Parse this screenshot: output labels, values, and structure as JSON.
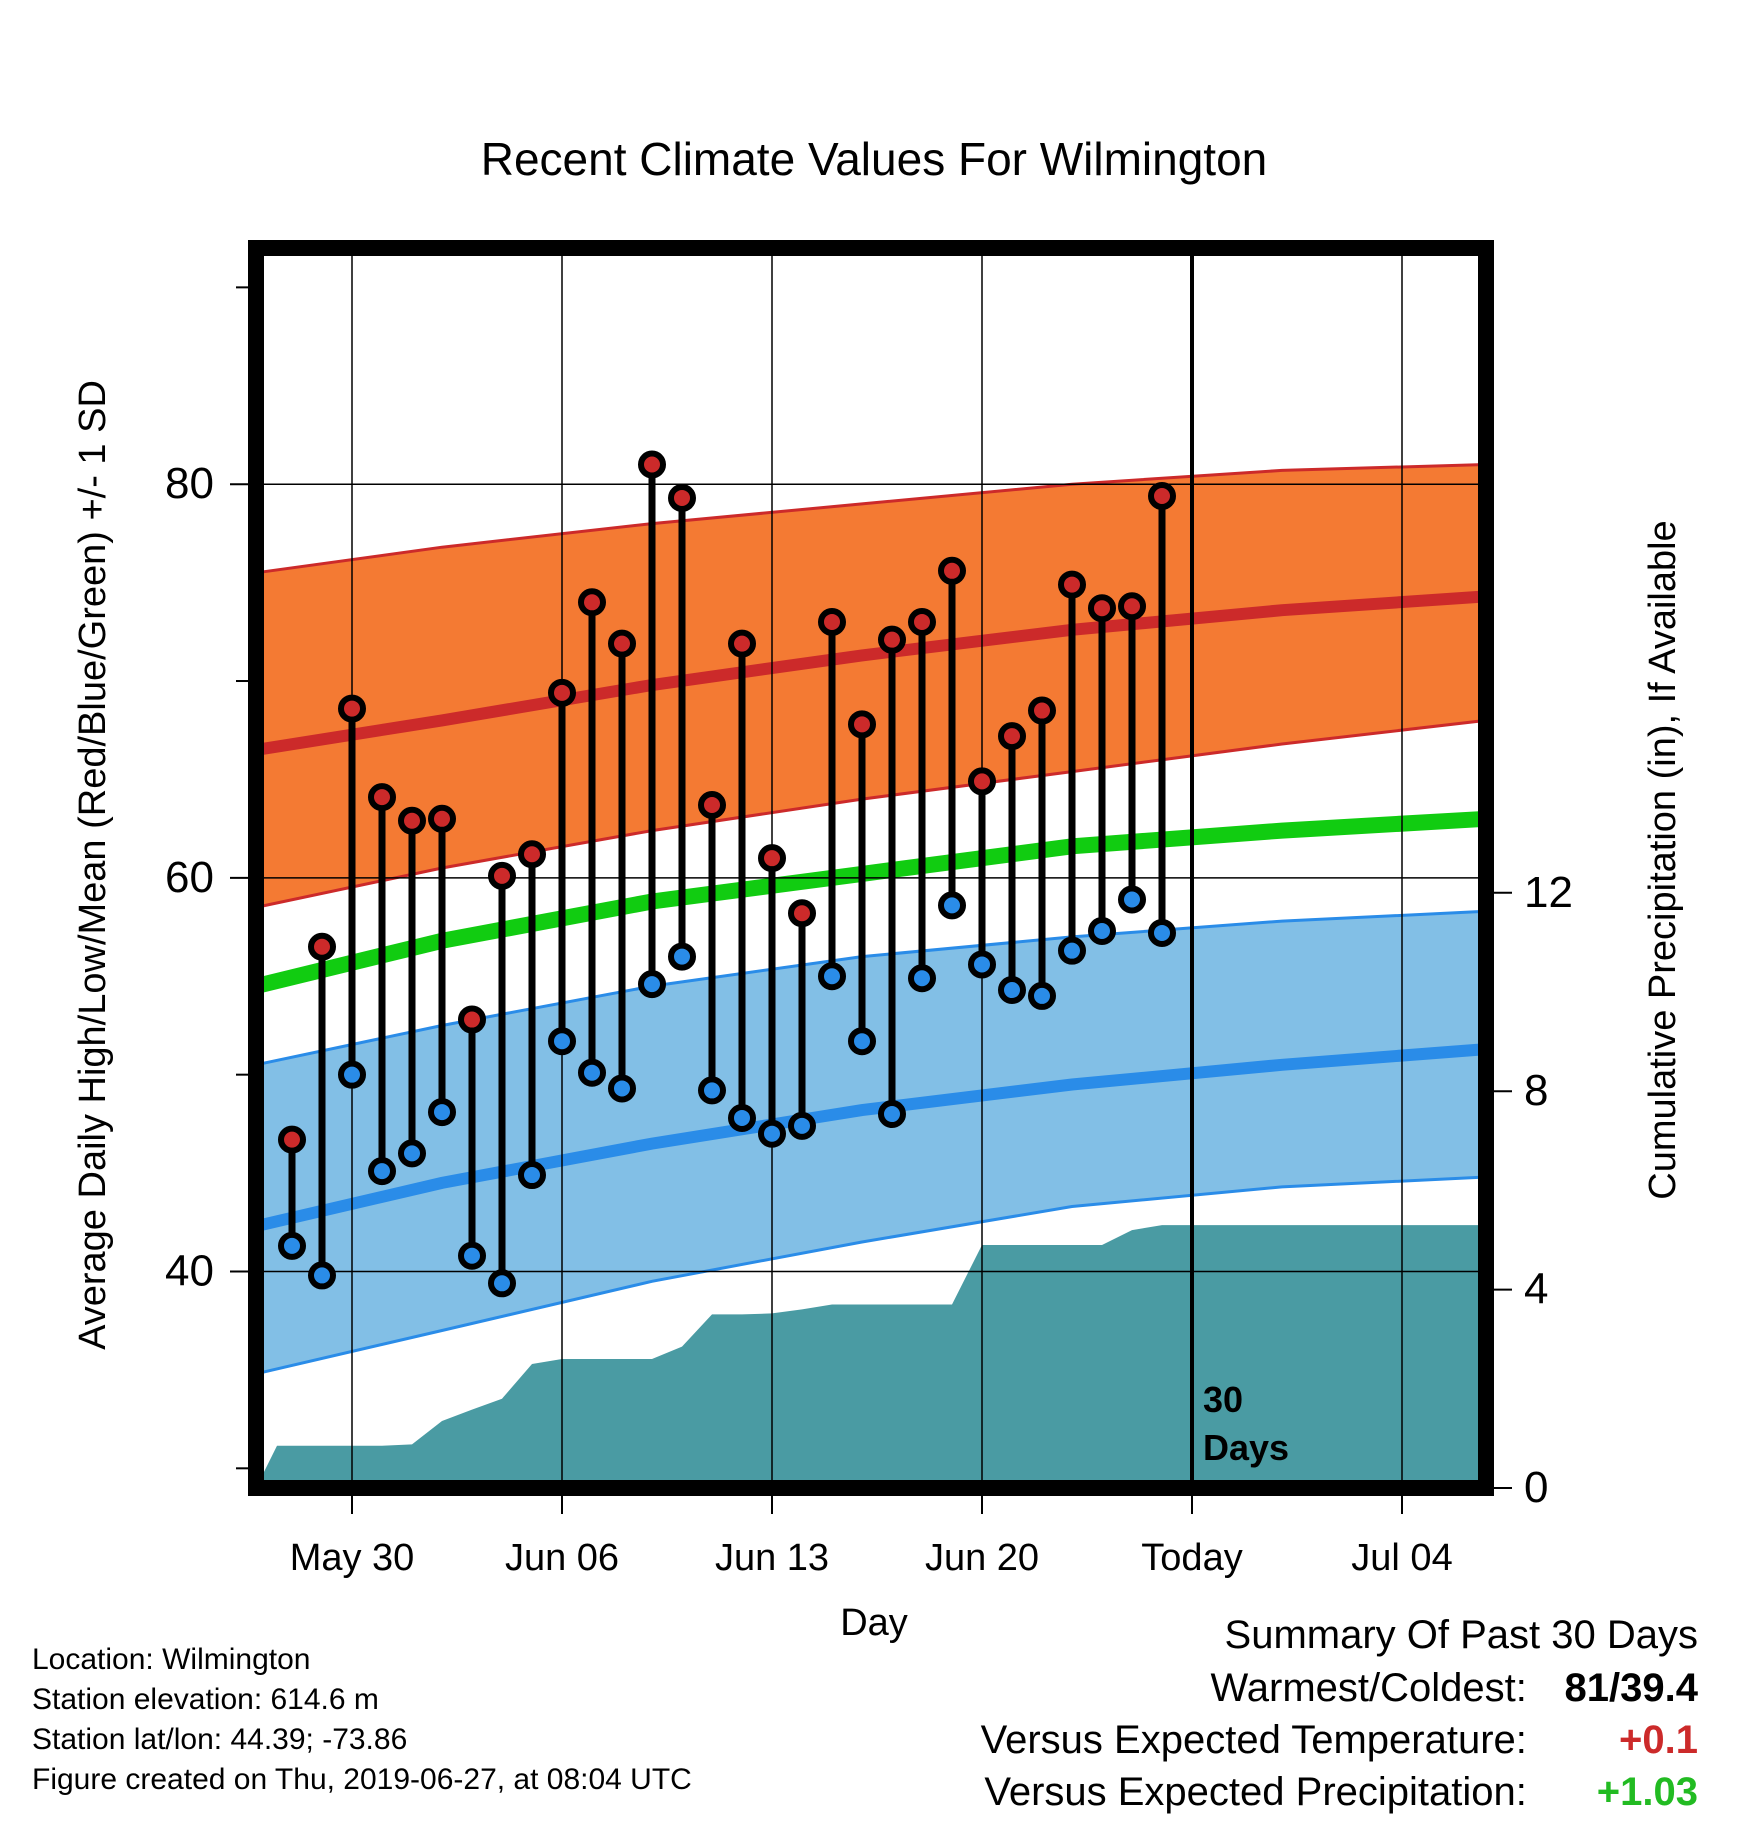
{
  "chart_data": {
    "type": "line",
    "title": "Recent Climate Values For Wilmington",
    "xlabel": "Day",
    "ylabel": "Average Daily High/Low/Mean (Red/Blue/Green) +/- 1 SD",
    "y2label": "Cumulative Precipitation (in), If Available",
    "x_tick_labels": [
      "May 30",
      "Jun 06",
      "Jun 13",
      "Jun 20",
      "Today",
      "Jul 04"
    ],
    "x_tick_dates": [
      "2019-05-30",
      "2019-06-06",
      "2019-06-13",
      "2019-06-20",
      "2019-06-27",
      "2019-07-04"
    ],
    "xlim": [
      "2019-05-26.8",
      "2019-07-06.8"
    ],
    "y_ticks": [
      "40",
      "60",
      "80"
    ],
    "ylim": [
      29,
      92
    ],
    "y2_ticks": [
      "0",
      "4",
      "8",
      "12"
    ],
    "y2lim": [
      0,
      25
    ],
    "today_marker": {
      "date": "2019-06-27",
      "label_line1": "30",
      "label_line2": "Days"
    },
    "normals": {
      "dates": [
        "2019-05-26.8",
        "2019-06-02",
        "2019-06-09",
        "2019-06-16",
        "2019-06-23",
        "2019-06-30",
        "2019-07-06.8"
      ],
      "high_mean": [
        66.5,
        68.0,
        69.8,
        71.3,
        72.6,
        73.6,
        74.3
      ],
      "high_plus_sd": [
        75.5,
        76.8,
        78.0,
        79.0,
        80.0,
        80.7,
        81.0
      ],
      "high_minus_sd": [
        58.5,
        60.5,
        62.4,
        64.0,
        65.4,
        66.8,
        68.0
      ],
      "mean": [
        54.5,
        56.8,
        58.8,
        60.2,
        61.6,
        62.4,
        63.0
      ],
      "low_mean": [
        42.3,
        44.5,
        46.5,
        48.2,
        49.5,
        50.5,
        51.3
      ],
      "low_plus_sd": [
        50.5,
        52.5,
        54.5,
        56.0,
        57.0,
        57.8,
        58.3
      ],
      "low_minus_sd": [
        34.8,
        37.0,
        39.5,
        41.5,
        43.3,
        44.3,
        44.8
      ]
    },
    "series": [
      {
        "name": "High",
        "color": "#cc2a2a",
        "dates": [
          "2019-05-28",
          "2019-05-29",
          "2019-05-30",
          "2019-05-31",
          "2019-06-01",
          "2019-06-02",
          "2019-06-03",
          "2019-06-04",
          "2019-06-05",
          "2019-06-06",
          "2019-06-07",
          "2019-06-08",
          "2019-06-09",
          "2019-06-10",
          "2019-06-11",
          "2019-06-12",
          "2019-06-13",
          "2019-06-14",
          "2019-06-15",
          "2019-06-16",
          "2019-06-17",
          "2019-06-18",
          "2019-06-19",
          "2019-06-20",
          "2019-06-21",
          "2019-06-22",
          "2019-06-23",
          "2019-06-24",
          "2019-06-25",
          "2019-06-26"
        ],
        "values": [
          46.7,
          56.5,
          68.6,
          64.1,
          62.9,
          63.0,
          52.8,
          60.1,
          61.2,
          69.4,
          74.0,
          71.9,
          81.0,
          79.3,
          63.7,
          71.9,
          61.0,
          58.2,
          73.0,
          67.8,
          72.1,
          73.0,
          75.6,
          64.9,
          67.2,
          68.5,
          74.9,
          73.7,
          73.8,
          79.4
        ]
      },
      {
        "name": "Low",
        "color": "#2a8ce8",
        "dates": [
          "2019-05-28",
          "2019-05-29",
          "2019-05-30",
          "2019-05-31",
          "2019-06-01",
          "2019-06-02",
          "2019-06-03",
          "2019-06-04",
          "2019-06-05",
          "2019-06-06",
          "2019-06-07",
          "2019-06-08",
          "2019-06-09",
          "2019-06-10",
          "2019-06-11",
          "2019-06-12",
          "2019-06-13",
          "2019-06-14",
          "2019-06-15",
          "2019-06-16",
          "2019-06-17",
          "2019-06-18",
          "2019-06-19",
          "2019-06-20",
          "2019-06-21",
          "2019-06-22",
          "2019-06-23",
          "2019-06-24",
          "2019-06-25",
          "2019-06-26"
        ],
        "values": [
          41.3,
          39.8,
          50.0,
          45.1,
          46.0,
          48.1,
          40.8,
          39.4,
          44.9,
          51.7,
          50.1,
          49.3,
          54.6,
          56.0,
          49.2,
          47.8,
          47.0,
          47.4,
          55.0,
          51.7,
          48.0,
          54.9,
          58.6,
          55.6,
          54.3,
          54.0,
          56.3,
          57.3,
          58.9,
          57.2
        ]
      },
      {
        "name": "Cumulative Precipitation",
        "color": "#4a9ba3",
        "dates": [
          "2019-05-26.8",
          "2019-05-27.5",
          "2019-05-28",
          "2019-05-29",
          "2019-05-30",
          "2019-05-31",
          "2019-06-01",
          "2019-06-02",
          "2019-06-03",
          "2019-06-04",
          "2019-06-05",
          "2019-06-06",
          "2019-06-07",
          "2019-06-08",
          "2019-06-09",
          "2019-06-10",
          "2019-06-11",
          "2019-06-12",
          "2019-06-13",
          "2019-06-14",
          "2019-06-15",
          "2019-06-16",
          "2019-06-17",
          "2019-06-18",
          "2019-06-19",
          "2019-06-20",
          "2019-06-21",
          "2019-06-22",
          "2019-06-23",
          "2019-06-24",
          "2019-06-25",
          "2019-06-26",
          "2019-07-06.8"
        ],
        "values": [
          0.0,
          0.85,
          0.85,
          0.85,
          0.85,
          0.85,
          0.88,
          1.35,
          1.58,
          1.8,
          2.5,
          2.6,
          2.6,
          2.6,
          2.6,
          2.85,
          3.5,
          3.5,
          3.52,
          3.6,
          3.7,
          3.7,
          3.7,
          3.7,
          3.7,
          4.9,
          4.9,
          4.9,
          4.9,
          4.9,
          5.2,
          5.3,
          5.3
        ]
      }
    ]
  },
  "footer": {
    "location": "Location: Wilmington",
    "elevation": "Station elevation: 614.6 m",
    "latlon": "Station lat/lon: 44.39; -73.86",
    "created": "Figure created on Thu, 2019-06-27, at 08:04 UTC"
  },
  "summary": {
    "title": "Summary Of Past 30 Days",
    "warm_cold_label": "Warmest/Coldest:",
    "warmest": "81",
    "coldest": "39.4",
    "temp_label": "Versus Expected Temperature:",
    "temp_value": "+0.1",
    "precip_label": "Versus Expected Precipitation:",
    "precip_value": "+1.03"
  },
  "colors": {
    "high_band": "#f47a33",
    "high_line": "#cc2a2a",
    "mean_line": "#11cc11",
    "low_band": "#82bfe6",
    "low_line": "#2a8ce8",
    "precip": "#4a9ba3"
  }
}
